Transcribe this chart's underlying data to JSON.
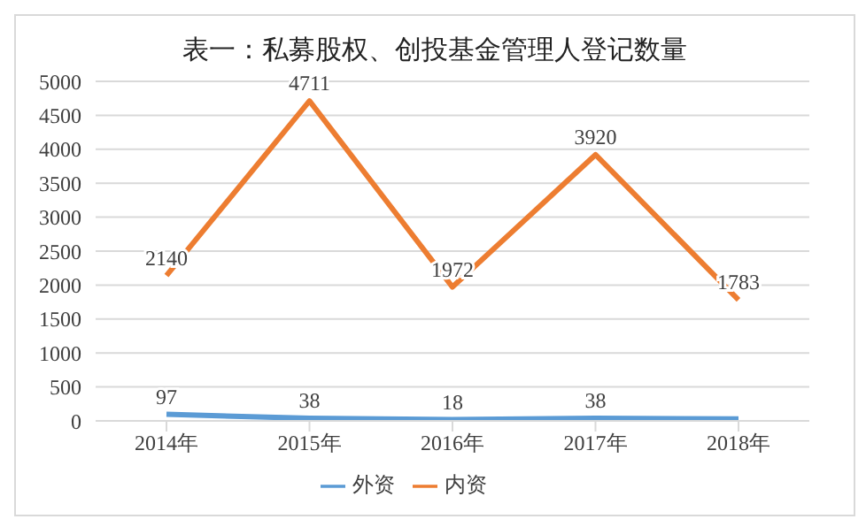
{
  "chart_data": {
    "type": "line",
    "title": "表一：私募股权、创投基金管理人登记数量",
    "categories": [
      "2014年",
      "2015年",
      "2016年",
      "2017年",
      "2018年"
    ],
    "series": [
      {
        "name": "外资",
        "color": "#5b9bd5",
        "values": [
          97,
          38,
          18,
          38,
          30
        ],
        "value_labels": [
          "97",
          "38",
          "18",
          "38",
          null
        ]
      },
      {
        "name": "内资",
        "color": "#ed7d31",
        "values": [
          2140,
          4711,
          1972,
          3920,
          1783
        ],
        "value_labels": [
          "2140",
          "4711",
          "1972",
          "3920",
          "1783"
        ]
      }
    ],
    "ylim": [
      0,
      5000
    ],
    "yticks": [
      0,
      500,
      1000,
      1500,
      2000,
      2500,
      3000,
      3500,
      4000,
      4500,
      5000
    ],
    "grid": "y",
    "legend": "bottom",
    "marker": "none",
    "line_style": "solid"
  }
}
